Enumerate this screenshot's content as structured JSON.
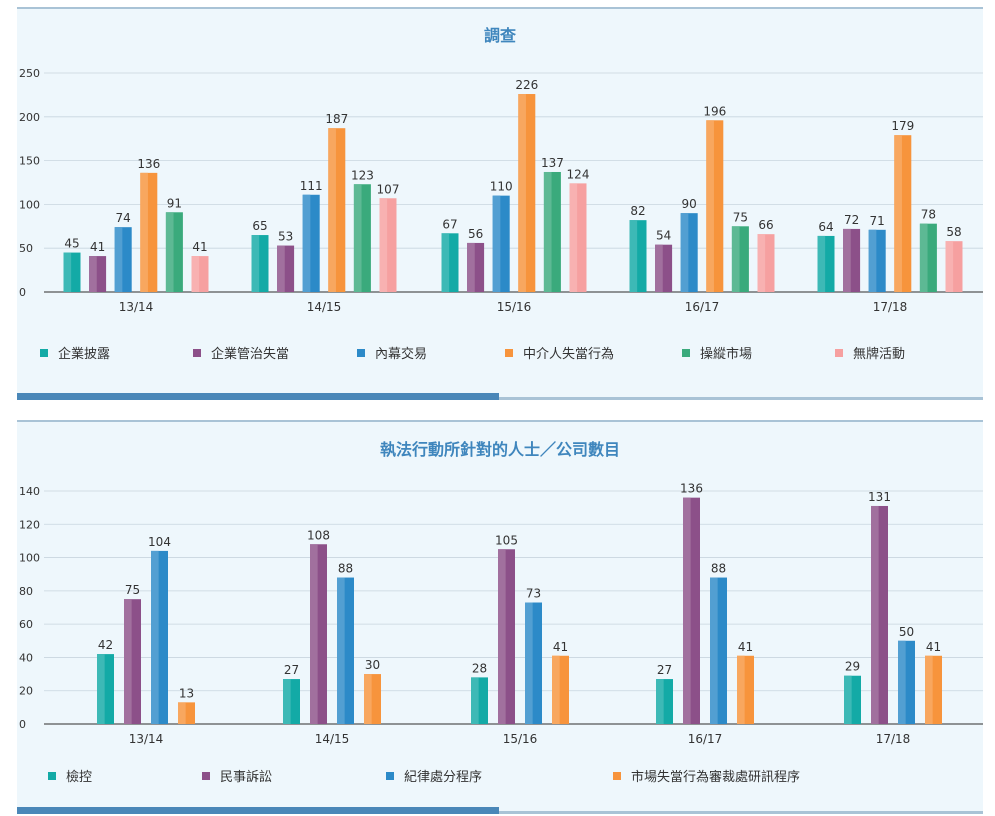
{
  "chart_data": [
    {
      "type": "bar",
      "title": "調查",
      "categories": [
        "13/14",
        "14/15",
        "15/16",
        "16/17",
        "17/18"
      ],
      "ylim": [
        0,
        250
      ],
      "yticks": [
        0,
        50,
        100,
        150,
        200,
        250
      ],
      "grid": true,
      "legend_position": "bottom",
      "series": [
        {
          "name": "企業披露",
          "color": "#13aaa6",
          "values": [
            45,
            65,
            67,
            82,
            64
          ]
        },
        {
          "name": "企業管治失當",
          "color": "#8c5089",
          "values": [
            41,
            53,
            56,
            54,
            72
          ]
        },
        {
          "name": "內幕交易",
          "color": "#2c8ac8",
          "values": [
            74,
            111,
            110,
            90,
            71
          ]
        },
        {
          "name": "中介人失當行為",
          "color": "#f7943c",
          "values": [
            136,
            187,
            226,
            196,
            179
          ]
        },
        {
          "name": "操縱市場",
          "color": "#3aaa7c",
          "values": [
            91,
            123,
            137,
            75,
            78
          ]
        },
        {
          "name": "無牌活動",
          "color": "#f6a0a0",
          "values": [
            41,
            107,
            124,
            66,
            58
          ]
        }
      ]
    },
    {
      "type": "bar",
      "title": "執法行動所針對的人士／公司數目",
      "categories": [
        "13/14",
        "14/15",
        "15/16",
        "16/17",
        "17/18"
      ],
      "ylim": [
        0,
        140
      ],
      "yticks": [
        0,
        20,
        40,
        60,
        80,
        100,
        120,
        140
      ],
      "grid": true,
      "legend_position": "bottom",
      "series": [
        {
          "name": "檢控",
          "color": "#13aaa6",
          "values": [
            42,
            27,
            28,
            27,
            29
          ]
        },
        {
          "name": "民事訴訟",
          "color": "#8c5089",
          "values": [
            75,
            108,
            105,
            136,
            131
          ]
        },
        {
          "name": "紀律處分程序",
          "color": "#2c8ac8",
          "values": [
            104,
            88,
            73,
            88,
            50
          ]
        },
        {
          "name": "市場失當行為審裁處研訊程序",
          "color": "#f7943c",
          "values": [
            13,
            30,
            41,
            41,
            41
          ]
        }
      ]
    }
  ]
}
